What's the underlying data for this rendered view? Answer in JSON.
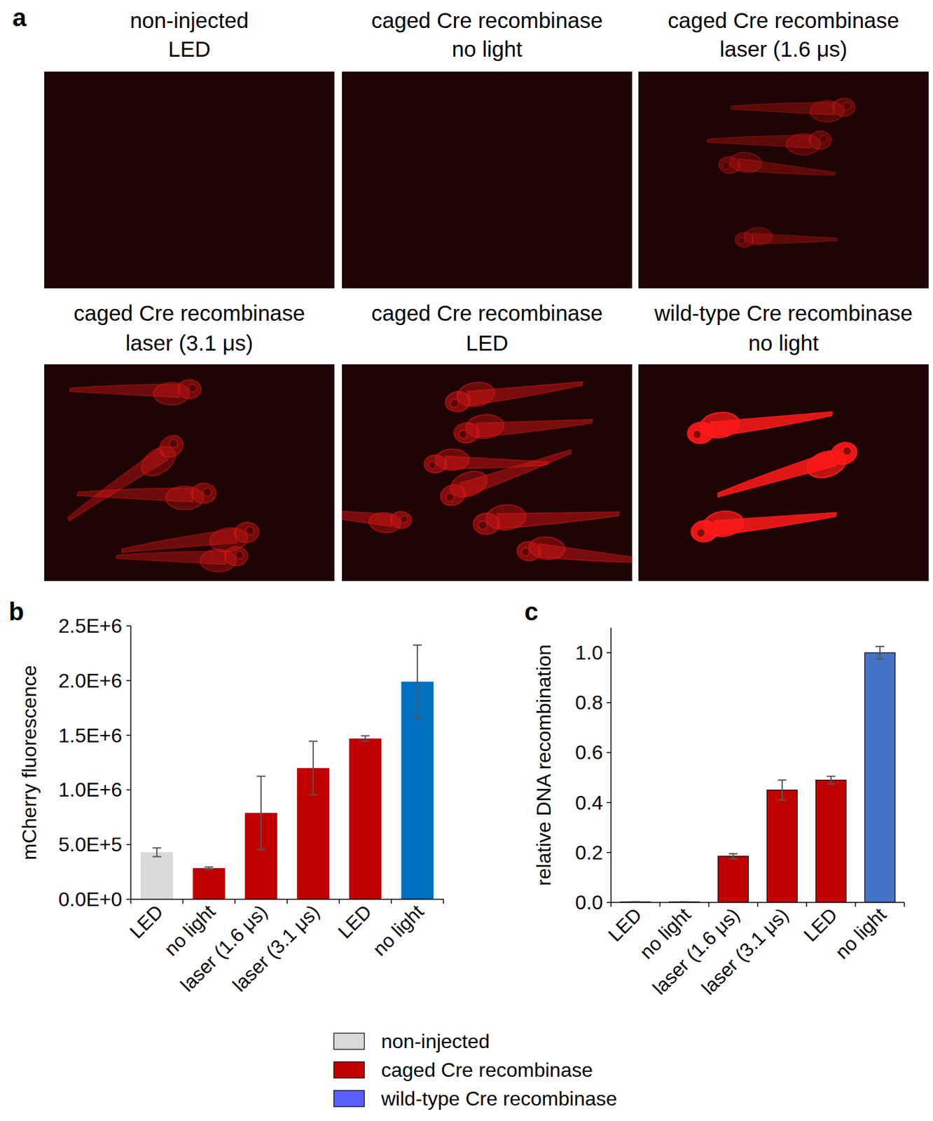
{
  "panel_labels": [
    "a",
    "b",
    "c"
  ],
  "panel_a": {
    "images": [
      {
        "title_lines": [
          "non-injected",
          "LED"
        ]
      },
      {
        "title_lines": [
          "caged Cre recombinase",
          "no light"
        ]
      },
      {
        "title_lines": [
          "caged Cre recombinase",
          "laser (1.6 μs)"
        ]
      },
      {
        "title_lines": [
          "caged Cre recombinase",
          "laser (3.1 μs)"
        ]
      },
      {
        "title_lines": [
          "caged Cre recombinase",
          "LED"
        ]
      },
      {
        "title_lines": [
          "wild-type Cre recombinase",
          "no light"
        ]
      }
    ]
  },
  "chart_data": [
    {
      "type": "bar",
      "ylabel": "mCherry fluorescence",
      "categories": [
        "LED",
        "no light",
        "laser (1.6 μs)",
        "laser (3.1 μs)",
        "LED",
        "no light"
      ],
      "values": [
        430000,
        285000,
        790000,
        1200000,
        1470000,
        1990000
      ],
      "errors": [
        40000,
        10000,
        335000,
        245000,
        25000,
        335000
      ],
      "colors": [
        "#d9d9d9",
        "#c00000",
        "#c00000",
        "#c00000",
        "#c00000",
        "#0070c0"
      ],
      "ylim": [
        0,
        2500000
      ],
      "yticks": [
        {
          "value": 0,
          "label": "0.0E+0"
        },
        {
          "value": 500000,
          "label": "5.0E+5"
        },
        {
          "value": 1000000,
          "label": "1.0E+6"
        },
        {
          "value": 1500000,
          "label": "1.5E+6"
        },
        {
          "value": 2000000,
          "label": "2.0E+6"
        },
        {
          "value": 2500000,
          "label": "2.5E+6"
        }
      ],
      "grid": false
    },
    {
      "type": "bar",
      "ylabel": "relative DNA recombination",
      "categories": [
        "LED",
        "no light",
        "laser (1.6 μs)",
        "laser (3.1 μs)",
        "LED",
        "no light"
      ],
      "values": [
        0.002,
        0.002,
        0.185,
        0.45,
        0.49,
        1.0
      ],
      "errors": [
        0,
        0,
        0.01,
        0.04,
        0.015,
        0.025
      ],
      "colors": [
        "#d9d9d9",
        "#c00000",
        "#c00000",
        "#c00000",
        "#c00000",
        "#4472c4"
      ],
      "ylim": [
        0,
        1.1
      ],
      "yticks": [
        {
          "value": 0,
          "label": "0.0"
        },
        {
          "value": 0.2,
          "label": "0.2"
        },
        {
          "value": 0.4,
          "label": "0.4"
        },
        {
          "value": 0.6,
          "label": "0.6"
        },
        {
          "value": 0.8,
          "label": "0.8"
        },
        {
          "value": 1.0,
          "label": "1.0"
        }
      ],
      "grid": false
    }
  ],
  "legend": {
    "entries": [
      {
        "name": "non-injected",
        "color": "#d9d9d9"
      },
      {
        "name": "caged Cre recombinase",
        "color": "#c00000"
      },
      {
        "name": "wild-type Cre recombinase",
        "color": "#5b5ef7"
      }
    ]
  }
}
